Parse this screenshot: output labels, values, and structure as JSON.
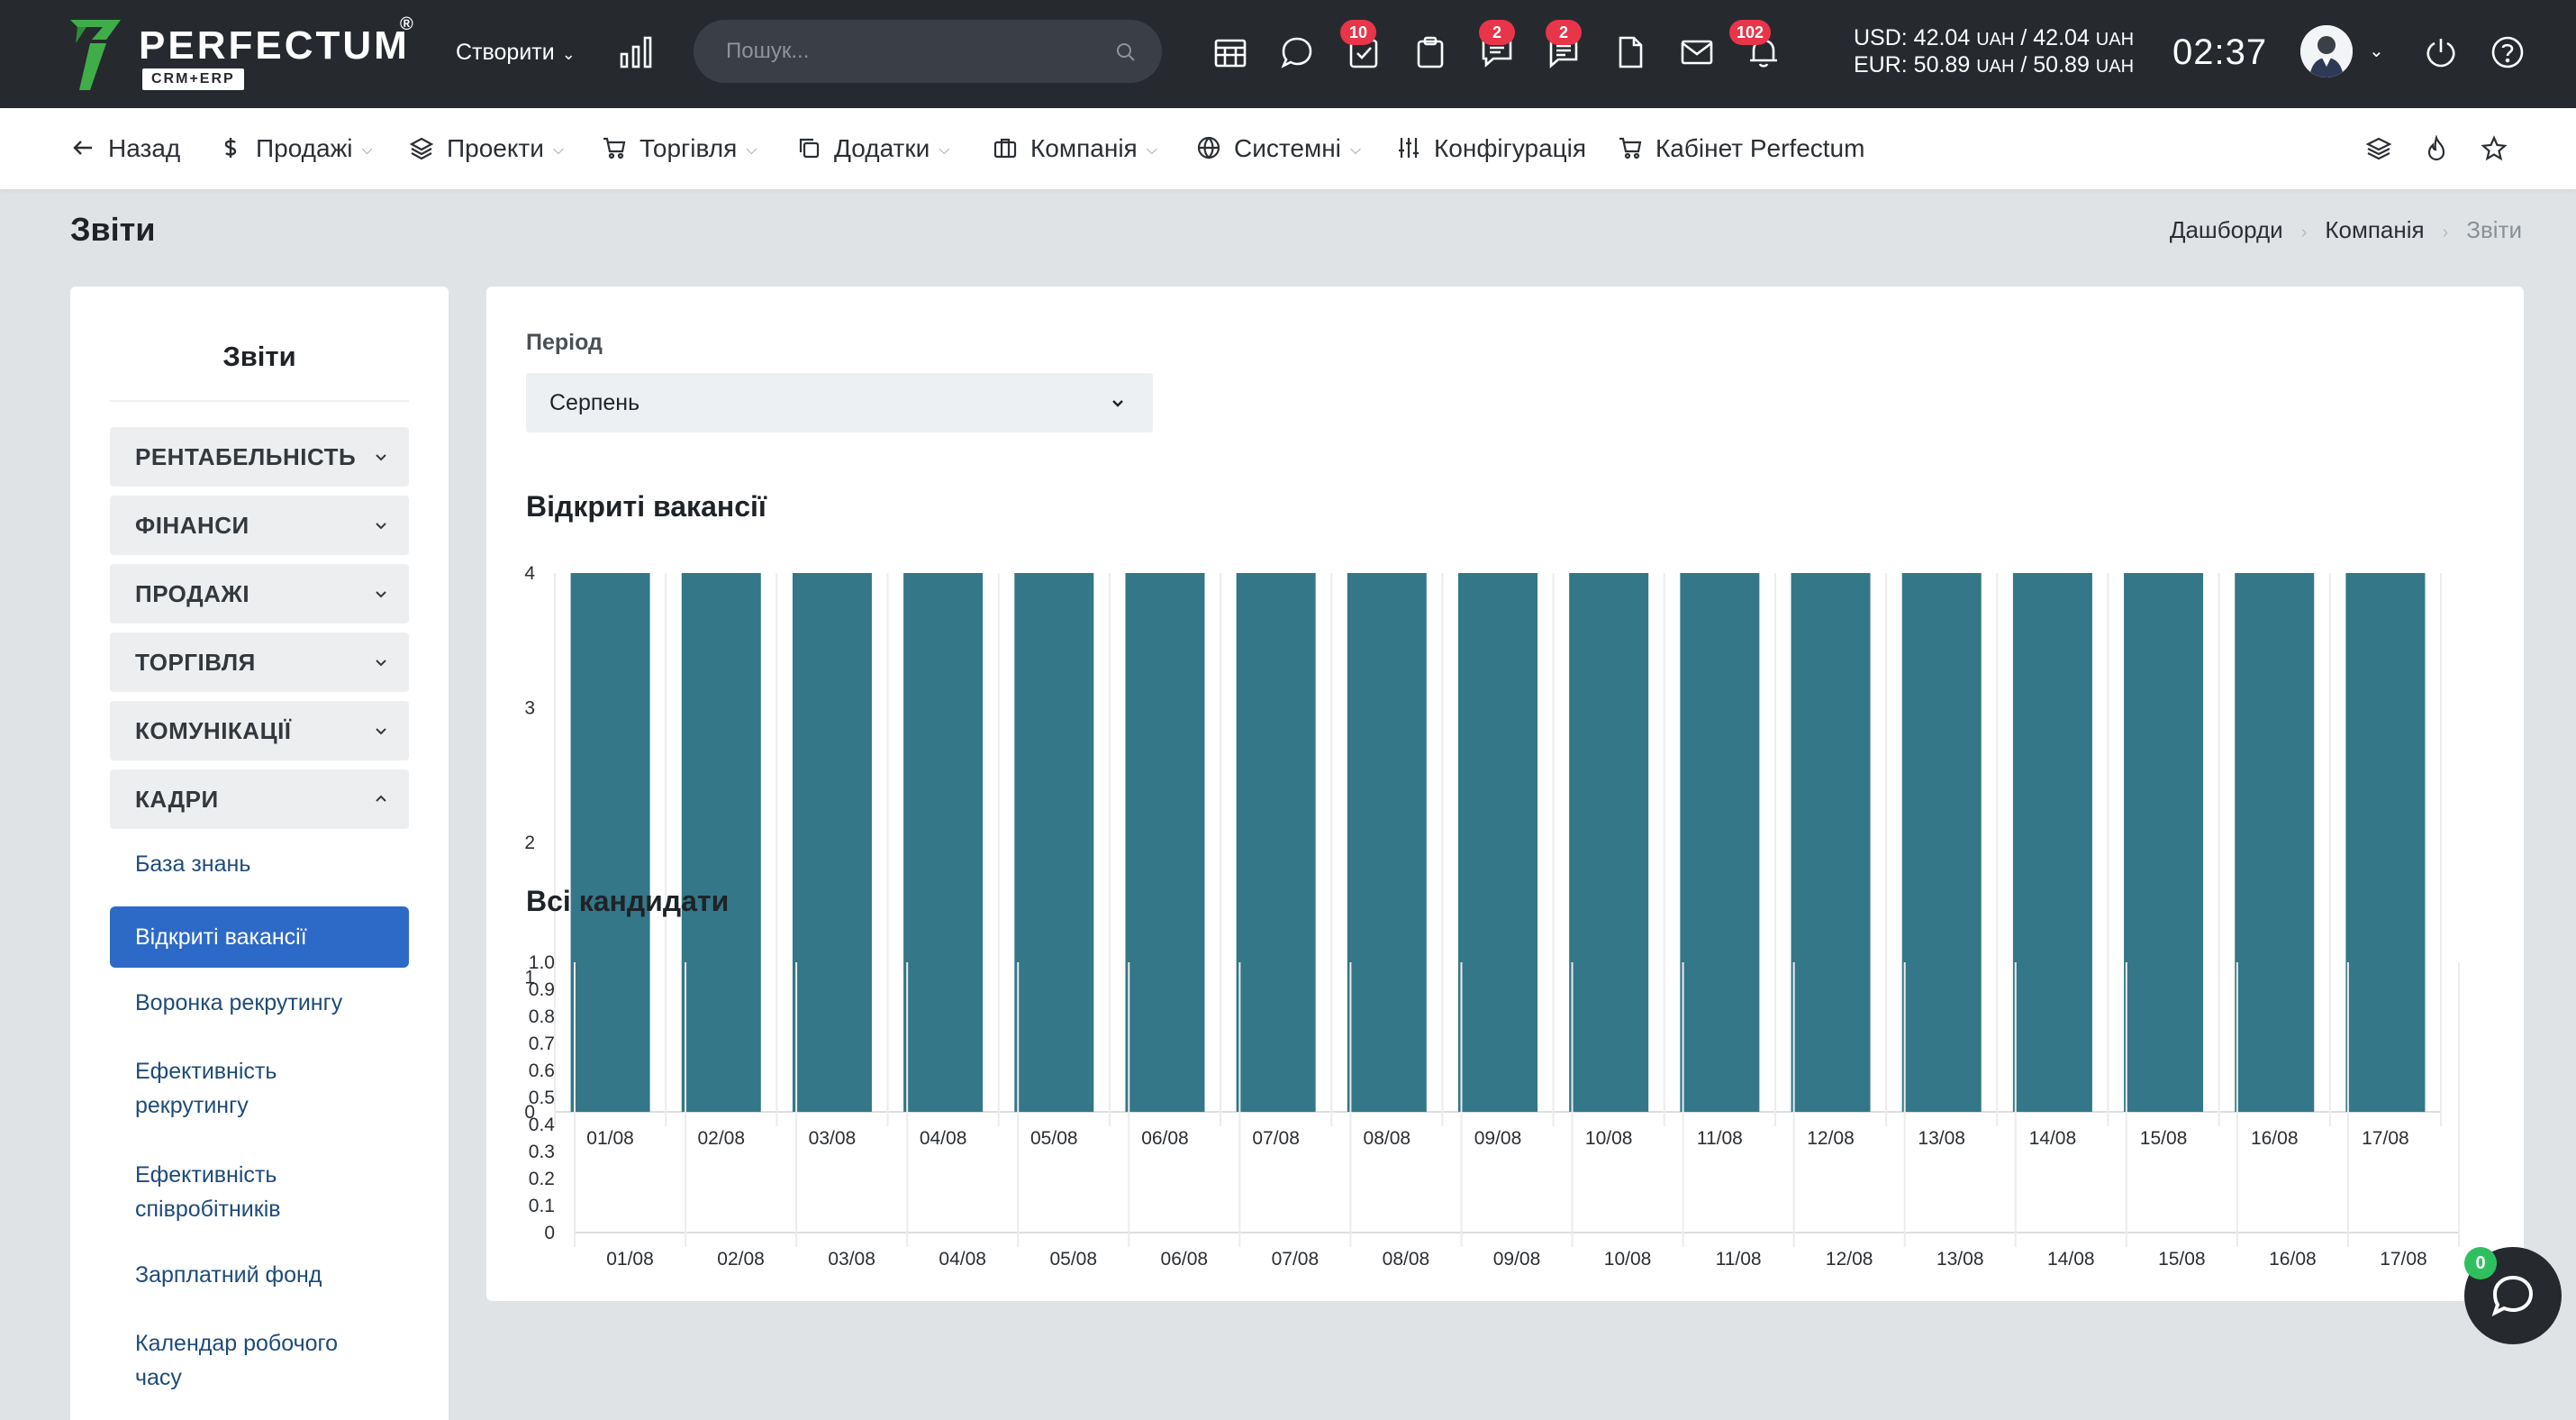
{
  "brand": {
    "name": "PERFECTUM",
    "registered": "®",
    "subtitle": "CRM+ERP"
  },
  "topbar": {
    "create_label": "Створити",
    "search_placeholder": "Пошук...",
    "badges": {
      "tasks": "10",
      "chat": "2",
      "messages": "2",
      "notifications": "102"
    },
    "usd_line": {
      "label": "USD: 42.04",
      "u1": "UAH",
      "mid": "/ 42.04",
      "u2": "UAH"
    },
    "eur_line": {
      "label": "EUR: 50.89",
      "u1": "UAH",
      "mid": "/ 50.89",
      "u2": "UAH"
    },
    "clock": "02:37"
  },
  "nav": {
    "back": "Назад",
    "sales": "Продажі",
    "projects": "Проекти",
    "trade": "Торгівля",
    "addons": "Додатки",
    "company": "Компанія",
    "system": "Системні",
    "config": "Конфігурація",
    "cabinet": "Кабінет Perfectum"
  },
  "page": {
    "title": "Звіти",
    "breadcrumb": [
      "Дашборди",
      "Компанія",
      "Звіти"
    ]
  },
  "sidebar": {
    "title": "Звіти",
    "sections": [
      "РЕНТАБЕЛЬНІСТЬ",
      "ФІНАНСИ",
      "ПРОДАЖІ",
      "ТОРГІВЛЯ",
      "КОМУНІКАЦІЇ",
      "КАДРИ"
    ],
    "links": [
      {
        "l1": "База знань",
        "l2": ""
      },
      {
        "l1": "Відкриті вакансії",
        "l2": ""
      },
      {
        "l1": "Воронка рекрутингу",
        "l2": ""
      },
      {
        "l1": "Ефективність",
        "l2": "рекрутингу"
      },
      {
        "l1": "Ефективність",
        "l2": "співробітників"
      },
      {
        "l1": "Зарплатний фонд",
        "l2": ""
      },
      {
        "l1": "Календар робочого",
        "l2": "часу"
      }
    ]
  },
  "filters": {
    "period_label": "Період",
    "period_value": "Серпень"
  },
  "chat": {
    "count": "0"
  },
  "colors": {
    "bar": "#337788",
    "active": "#2d6ac7",
    "topbar": "#262a2f"
  },
  "chart_data": [
    {
      "type": "bar",
      "title": "Відкриті вакансії",
      "categories": [
        "01/08",
        "02/08",
        "03/08",
        "04/08",
        "05/08",
        "06/08",
        "07/08",
        "08/08",
        "09/08",
        "10/08",
        "11/08",
        "12/08",
        "13/08",
        "14/08",
        "15/08",
        "16/08",
        "17/08"
      ],
      "values": [
        4,
        4,
        4,
        4,
        4,
        4,
        4,
        4,
        4,
        4,
        4,
        4,
        4,
        4,
        4,
        4,
        4
      ],
      "ylim": [
        0,
        4
      ],
      "yticks": [
        "0",
        "1",
        "2",
        "3",
        "4"
      ],
      "grid": true
    },
    {
      "type": "bar",
      "title": "Всі кандидати",
      "categories": [
        "01/08",
        "02/08",
        "03/08",
        "04/08",
        "05/08",
        "06/08",
        "07/08",
        "08/08",
        "09/08",
        "10/08",
        "11/08",
        "12/08",
        "13/08",
        "14/08",
        "15/08",
        "16/08",
        "17/08"
      ],
      "values": [
        0,
        0,
        0,
        0,
        0,
        0,
        0,
        0,
        0,
        0,
        0,
        0,
        0,
        0,
        0,
        0,
        0
      ],
      "ylim": [
        0,
        1
      ],
      "yticks": [
        "0",
        "0.1",
        "0.2",
        "0.3",
        "0.4",
        "0.5",
        "0.6",
        "0.7",
        "0.8",
        "0.9",
        "1.0"
      ],
      "grid": true
    }
  ]
}
